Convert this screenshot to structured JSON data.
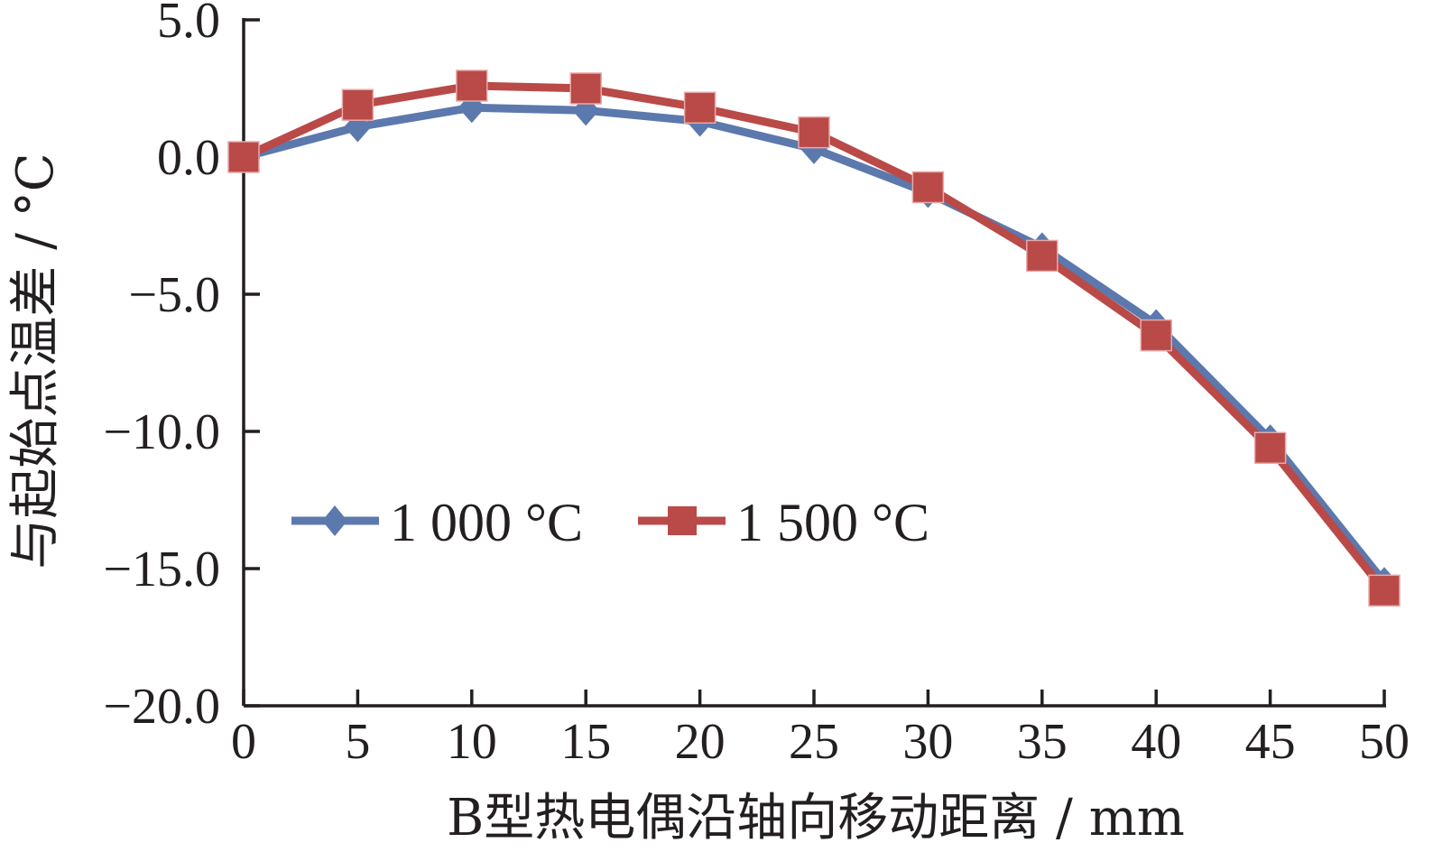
{
  "chart_data": {
    "type": "line",
    "title": "",
    "xlabel": "B型热电偶沿轴向移动距离 / mm",
    "ylabel": "与起始点温差 / °C",
    "x": [
      0,
      5,
      10,
      15,
      20,
      25,
      30,
      35,
      40,
      45,
      50
    ],
    "x_tick_labels": [
      "0",
      "5",
      "10",
      "15",
      "20",
      "25",
      "30",
      "35",
      "40",
      "45",
      "50"
    ],
    "y_tick_values": [
      5.0,
      0.0,
      -5.0,
      -10.0,
      -15.0,
      -20.0
    ],
    "y_tick_labels": [
      "5.0",
      "0.0",
      "−5.0",
      "−10.0",
      "−15.0",
      "−20.0"
    ],
    "xlim": [
      0,
      50
    ],
    "ylim": [
      -20,
      5
    ],
    "grid": false,
    "legend_position": "left",
    "series": [
      {
        "name": "1 000 °C",
        "color": "#5b79ad",
        "marker": "diamond",
        "values": [
          0.0,
          1.1,
          1.8,
          1.7,
          1.3,
          0.3,
          -1.3,
          -3.3,
          -6.1,
          -10.3,
          -15.5
        ]
      },
      {
        "name": "1 500 °C",
        "color": "#b94a48",
        "marker": "square",
        "values": [
          0.0,
          1.9,
          2.6,
          2.5,
          1.8,
          0.9,
          -1.1,
          -3.6,
          -6.5,
          -10.6,
          -15.8
        ]
      }
    ]
  }
}
